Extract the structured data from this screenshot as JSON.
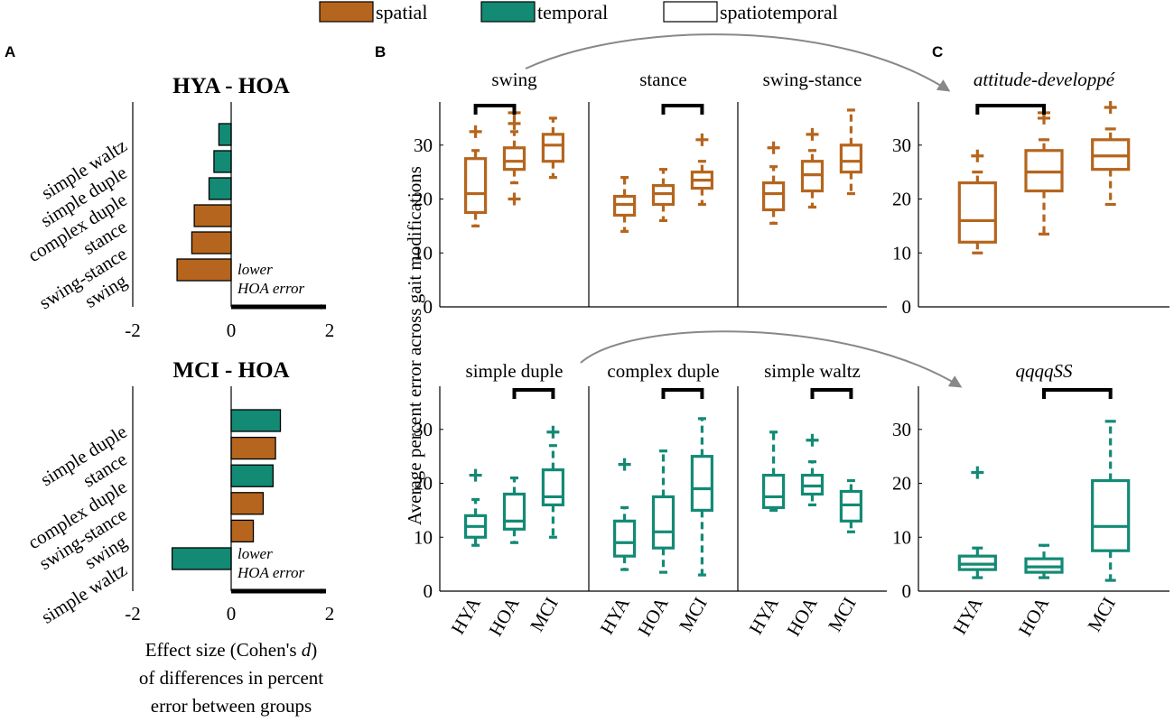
{
  "legend": {
    "items": [
      {
        "label": "spatial",
        "color": "#b5651d"
      },
      {
        "label": "temporal",
        "color": "#138a74"
      },
      {
        "label": "spatiotemporal",
        "color": "#ffffff"
      }
    ]
  },
  "panel_letters": {
    "a": "A",
    "b": "B",
    "c": "C"
  },
  "colors": {
    "spatial": "#b5651d",
    "temporal": "#138a74",
    "bracket": "#000000",
    "arrow": "#888888"
  },
  "panel_a": {
    "xlabel_lines": [
      "Effect size (Cohen's d)",
      "of differences in percent",
      "error between groups"
    ],
    "xlabel_italic_char": "d",
    "arrow_text_lines": [
      "lower",
      "HOA error"
    ]
  },
  "panel_b": {
    "ylabel": "Average percent error across gait modifications"
  },
  "chart_data": [
    {
      "type": "bar",
      "orientation": "horizontal",
      "id": "a1",
      "title": "HYA - HOA",
      "categories": [
        "simple waltz",
        "simple duple",
        "complex duple",
        "stance",
        "swing-stance",
        "swing"
      ],
      "values": [
        -0.25,
        -0.35,
        -0.45,
        -0.75,
        -0.8,
        -1.1
      ],
      "color_groups": [
        "temporal",
        "temporal",
        "temporal",
        "spatial",
        "spatial",
        "spatial"
      ],
      "xlim": [
        -2,
        2
      ],
      "xticks": [
        -2,
        0,
        2
      ]
    },
    {
      "type": "bar",
      "orientation": "horizontal",
      "id": "a2",
      "title": "MCI - HOA",
      "categories": [
        "simple duple",
        "stance",
        "complex duple",
        "swing-stance",
        "swing",
        "simple waltz"
      ],
      "values": [
        1.0,
        0.9,
        0.85,
        0.65,
        0.45,
        -1.2
      ],
      "color_groups": [
        "temporal",
        "spatial",
        "temporal",
        "spatial",
        "spatial",
        "temporal"
      ],
      "xlim": [
        -2,
        2
      ],
      "xticks": [
        -2,
        0,
        2
      ]
    },
    {
      "type": "box",
      "title": "swing",
      "color_group": "spatial",
      "categories": [
        "HYA",
        "HOA",
        "MCI"
      ],
      "ylim": [
        0,
        38
      ],
      "yticks": [
        0,
        10,
        20,
        30
      ],
      "boxes": [
        {
          "whisker_low": 15,
          "q1": 17.5,
          "median": 21,
          "q3": 27.5,
          "whisker_high": 29,
          "outliers": [
            32.5
          ]
        },
        {
          "whisker_low": 23,
          "q1": 25.5,
          "median": 27,
          "q3": 29.5,
          "whisker_high": 32.5,
          "outliers": [
            20,
            34,
            36
          ]
        },
        {
          "whisker_low": 24,
          "q1": 27,
          "median": 30,
          "q3": 32,
          "whisker_high": 35,
          "outliers": []
        }
      ],
      "brackets": [
        [
          0,
          1
        ]
      ],
      "x_tick_labels_shown": false
    },
    {
      "type": "box",
      "title": "stance",
      "color_group": "spatial",
      "categories": [
        "HYA",
        "HOA",
        "MCI"
      ],
      "ylim": [
        0,
        38
      ],
      "yticks": [
        0,
        10,
        20,
        30
      ],
      "boxes": [
        {
          "whisker_low": 14,
          "q1": 17,
          "median": 19,
          "q3": 20.5,
          "whisker_high": 24,
          "outliers": []
        },
        {
          "whisker_low": 16,
          "q1": 19,
          "median": 21,
          "q3": 22.5,
          "whisker_high": 25.5,
          "outliers": []
        },
        {
          "whisker_low": 19,
          "q1": 22,
          "median": 23.5,
          "q3": 25,
          "whisker_high": 27,
          "outliers": [
            31
          ]
        }
      ],
      "brackets": [
        [
          1,
          2
        ]
      ],
      "x_tick_labels_shown": false
    },
    {
      "type": "box",
      "title": "swing-stance",
      "color_group": "spatial",
      "categories": [
        "HYA",
        "HOA",
        "MCI"
      ],
      "ylim": [
        0,
        38
      ],
      "yticks": [
        0,
        10,
        20,
        30
      ],
      "boxes": [
        {
          "whisker_low": 15.5,
          "q1": 18,
          "median": 21,
          "q3": 23,
          "whisker_high": 26,
          "outliers": [
            29.5
          ]
        },
        {
          "whisker_low": 18.5,
          "q1": 21.5,
          "median": 24.5,
          "q3": 27,
          "whisker_high": 29,
          "outliers": [
            32
          ]
        },
        {
          "whisker_low": 21,
          "q1": 25,
          "median": 27,
          "q3": 30,
          "whisker_high": 36.5,
          "outliers": []
        }
      ],
      "brackets": [],
      "x_tick_labels_shown": false
    },
    {
      "type": "box",
      "title": "simple duple",
      "color_group": "temporal",
      "categories": [
        "HYA",
        "HOA",
        "MCI"
      ],
      "ylim": [
        0,
        38
      ],
      "yticks": [
        0,
        10,
        20,
        30
      ],
      "boxes": [
        {
          "whisker_low": 8.5,
          "q1": 10,
          "median": 12,
          "q3": 14,
          "whisker_high": 17,
          "outliers": [
            21.5
          ]
        },
        {
          "whisker_low": 9,
          "q1": 11.5,
          "median": 13,
          "q3": 18,
          "whisker_high": 21,
          "outliers": []
        },
        {
          "whisker_low": 10,
          "q1": 16,
          "median": 17.5,
          "q3": 22.5,
          "whisker_high": 27,
          "outliers": [
            29.5
          ]
        }
      ],
      "brackets": [
        [
          1,
          2
        ]
      ],
      "x_tick_labels_shown": true
    },
    {
      "type": "box",
      "title": "complex duple",
      "color_group": "temporal",
      "categories": [
        "HYA",
        "HOA",
        "MCI"
      ],
      "ylim": [
        0,
        38
      ],
      "yticks": [
        0,
        10,
        20,
        30
      ],
      "boxes": [
        {
          "whisker_low": 4,
          "q1": 6.5,
          "median": 9,
          "q3": 13,
          "whisker_high": 15.5,
          "outliers": [
            23.5
          ]
        },
        {
          "whisker_low": 3.5,
          "q1": 8,
          "median": 11,
          "q3": 17.5,
          "whisker_high": 26,
          "outliers": []
        },
        {
          "whisker_low": 3,
          "q1": 15,
          "median": 19,
          "q3": 25,
          "whisker_high": 32,
          "outliers": []
        }
      ],
      "brackets": [
        [
          1,
          2
        ]
      ],
      "x_tick_labels_shown": true
    },
    {
      "type": "box",
      "title": "simple waltz",
      "color_group": "temporal",
      "categories": [
        "HYA",
        "HOA",
        "MCI"
      ],
      "ylim": [
        0,
        38
      ],
      "yticks": [
        0,
        10,
        20,
        30
      ],
      "boxes": [
        {
          "whisker_low": 15,
          "q1": 15.5,
          "median": 17.5,
          "q3": 21.5,
          "whisker_high": 29.5,
          "outliers": []
        },
        {
          "whisker_low": 16,
          "q1": 18,
          "median": 19.5,
          "q3": 21.5,
          "whisker_high": 24,
          "outliers": [
            28
          ]
        },
        {
          "whisker_low": 11,
          "q1": 13,
          "median": 16,
          "q3": 18.5,
          "whisker_high": 20.5,
          "outliers": []
        }
      ],
      "brackets": [
        [
          1,
          2
        ]
      ],
      "x_tick_labels_shown": true
    },
    {
      "type": "box",
      "title": "attitude-developpé",
      "title_italic": true,
      "color_group": "spatial",
      "categories": [
        "HYA",
        "HOA",
        "MCI"
      ],
      "ylim": [
        0,
        38
      ],
      "yticks": [
        0,
        10,
        20,
        30
      ],
      "boxes": [
        {
          "whisker_low": 10,
          "q1": 12,
          "median": 16,
          "q3": 23,
          "whisker_high": 25,
          "outliers": [
            28
          ]
        },
        {
          "whisker_low": 13.5,
          "q1": 21.5,
          "median": 25,
          "q3": 29,
          "whisker_high": 31,
          "outliers": [
            35,
            36
          ]
        },
        {
          "whisker_low": 19,
          "q1": 25.5,
          "median": 28,
          "q3": 31,
          "whisker_high": 33,
          "outliers": [
            37
          ]
        }
      ],
      "brackets": [
        [
          0,
          1
        ]
      ],
      "x_tick_labels_shown": false
    },
    {
      "type": "box",
      "title": "qqqqSS",
      "title_italic": true,
      "color_group": "temporal",
      "categories": [
        "HYA",
        "HOA",
        "MCI"
      ],
      "ylim": [
        0,
        38
      ],
      "yticks": [
        0,
        10,
        20,
        30
      ],
      "boxes": [
        {
          "whisker_low": 2.5,
          "q1": 4,
          "median": 5,
          "q3": 6.5,
          "whisker_high": 8,
          "outliers": [
            22
          ]
        },
        {
          "whisker_low": 2.5,
          "q1": 3.5,
          "median": 4.5,
          "q3": 6,
          "whisker_high": 8.5,
          "outliers": []
        },
        {
          "whisker_low": 2,
          "q1": 7.5,
          "median": 12,
          "q3": 20.5,
          "whisker_high": 31.5,
          "outliers": []
        }
      ],
      "brackets": [
        [
          1,
          2
        ]
      ],
      "x_tick_labels_shown": true
    }
  ]
}
